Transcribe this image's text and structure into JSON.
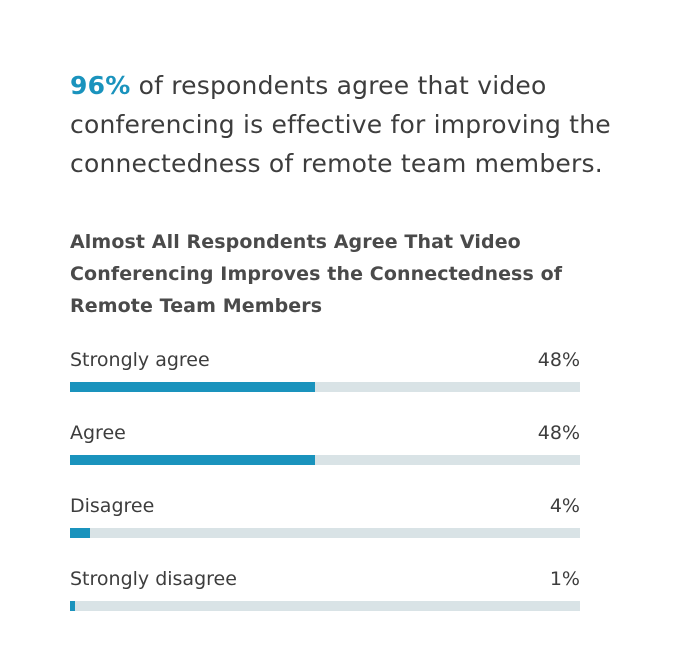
{
  "headline": {
    "highlight": "96%",
    "text": " of respondents agree that video conferencing is effective for improving the connectedness of remote team members."
  },
  "colors": {
    "accent": "#1a93bd",
    "track": "#d9e3e6",
    "text": "#3d3d3d"
  },
  "chart_data": {
    "type": "bar",
    "orientation": "horizontal",
    "title": "Almost All Respondents Agree That Video Conferencing Improves the Connectedness of Remote Team Members",
    "xlim": [
      0,
      100
    ],
    "categories": [
      "Strongly agree",
      "Agree",
      "Disagree",
      "Strongly disagree"
    ],
    "values": [
      48,
      48,
      4,
      1
    ],
    "value_labels": [
      "48%",
      "48%",
      "4%",
      "1%"
    ]
  }
}
